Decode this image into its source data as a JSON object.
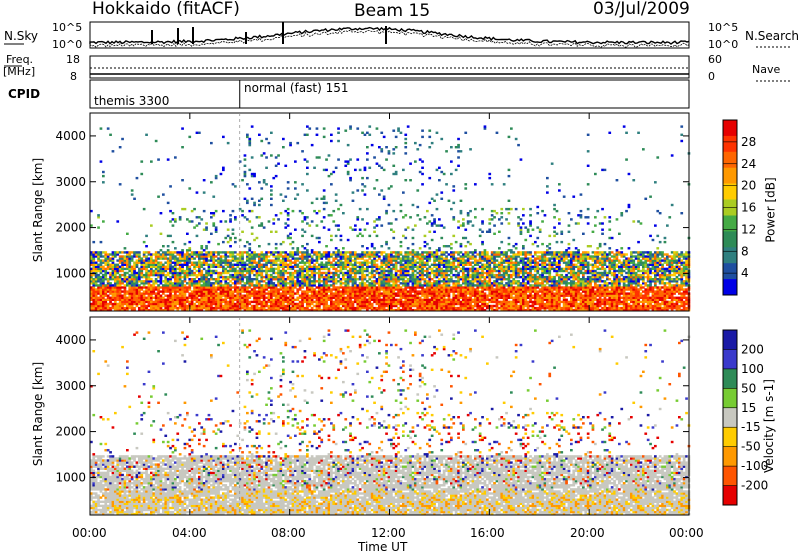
{
  "header": {
    "station": "Hokkaido (fitACF)",
    "beam": "Beam 15",
    "date": "03/Jul/2009"
  },
  "top_panel": {
    "left_label": "N.Sky",
    "right_label": "N.Search",
    "left_ticks": [
      "10^5",
      "10^0"
    ],
    "right_ticks": [
      "10^5",
      "10^0"
    ]
  },
  "freq_panel": {
    "left_label_line1": "Freq.",
    "left_label_line2": "[MHz]",
    "right_label": "Nave",
    "left_ticks": [
      "18",
      "8"
    ],
    "right_ticks": [
      "60",
      "0"
    ]
  },
  "cpid_panel": {
    "label": "CPID",
    "modes": [
      {
        "name": "themis 3300",
        "start_hour": 0
      },
      {
        "name": "normal (fast) 151",
        "start_hour": 6
      }
    ]
  },
  "x_axis": {
    "title": "Time UT",
    "ticks": [
      "00:00",
      "04:00",
      "08:00",
      "12:00",
      "16:00",
      "20:00",
      "00:00"
    ]
  },
  "chart_data": [
    {
      "type": "heatmap",
      "quantity": "Power",
      "ylabel": "Slant Range [km]",
      "xlabel": "Time UT",
      "y_ticks": [
        "1000",
        "2000",
        "3000",
        "4000"
      ],
      "ylim": [
        180,
        4500
      ],
      "xlim_hours": [
        0,
        24
      ],
      "colorbar_title": "Power [dB]",
      "colorbar_ticks": [
        "28",
        "24",
        "20",
        "16",
        "12",
        "8",
        "4"
      ],
      "colorbar_colors": [
        "#e60000",
        "#ff3300",
        "#ff6600",
        "#ff9900",
        "#ffcc00",
        "#aacc22",
        "#44aa44",
        "#2e8b57",
        "#2f7f7f",
        "#1f4fa0",
        "#0000e6"
      ],
      "range_bands": [
        {
          "from_km": 180,
          "to_km": 700,
          "level": "28",
          "hours": [
            0,
            24
          ]
        },
        {
          "from_km": 700,
          "to_km": 1450,
          "level": "16",
          "hours": [
            0,
            24
          ]
        },
        {
          "from_km": 1800,
          "to_km": 4200,
          "level": "sparse",
          "hours": [
            2,
            22
          ]
        }
      ]
    },
    {
      "type": "heatmap",
      "quantity": "Velocity",
      "ylabel": "Slant Range [km]",
      "xlabel": "Time UT",
      "y_ticks": [
        "1000",
        "2000",
        "3000",
        "4000"
      ],
      "ylim": [
        180,
        4500
      ],
      "xlim_hours": [
        0,
        24
      ],
      "colorbar_title": "Velocity [m s-1]",
      "colorbar_ticks": [
        "200",
        "100",
        "50",
        "15",
        "-15",
        "-50",
        "-100",
        "-200"
      ],
      "colorbar_colors": [
        "#1a1aa6",
        "#3a3acc",
        "#2e8b57",
        "#77cc33",
        "#c8c8c0",
        "#ffcc00",
        "#ff9900",
        "#ff5500",
        "#e60000"
      ],
      "range_bands": [
        {
          "from_km": 180,
          "to_km": 1450,
          "level": "-15 to 15",
          "hours": [
            0,
            24
          ]
        }
      ]
    }
  ]
}
